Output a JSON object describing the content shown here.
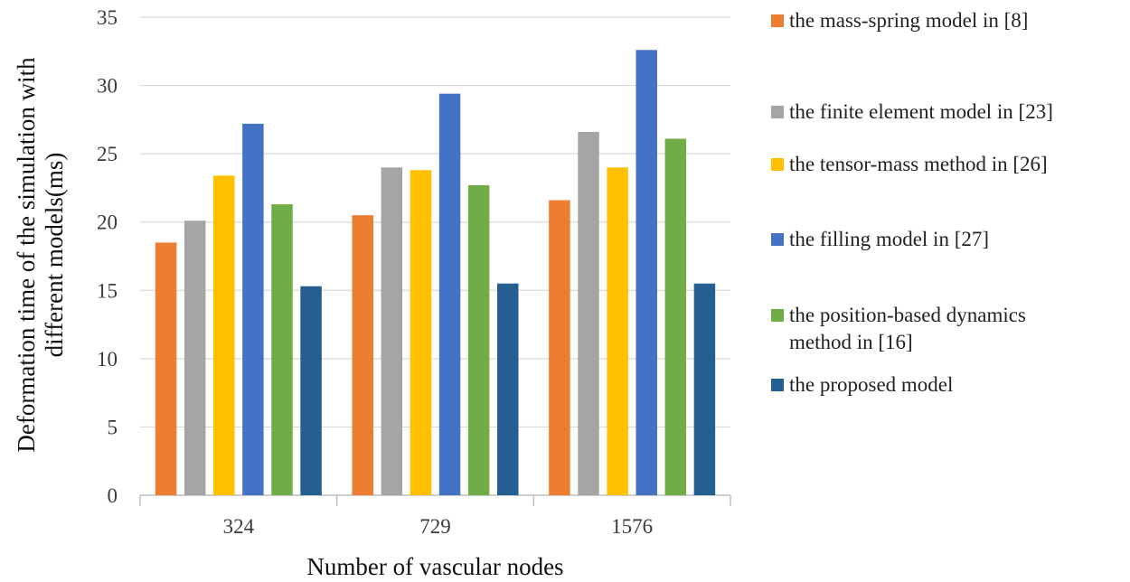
{
  "chart_data": {
    "type": "bar",
    "categories": [
      "324",
      "729",
      "1576"
    ],
    "xlabel": "Number of vascular nodes",
    "ylabel_lines": [
      "Deformation time of the simulation with",
      "different models(ms)"
    ],
    "ylim": [
      0,
      35
    ],
    "yticks": [
      0,
      5,
      10,
      15,
      20,
      25,
      30,
      35
    ],
    "grid": true,
    "legend_position": "right",
    "series": [
      {
        "name_lines": [
          "the mass-spring model in [8]"
        ],
        "color": "#ED7D31",
        "values": [
          18.5,
          20.5,
          21.6
        ]
      },
      {
        "name_lines": [
          "the finite element model in [23]"
        ],
        "color": "#A5A5A5",
        "values": [
          20.1,
          24.0,
          26.6
        ]
      },
      {
        "name_lines": [
          "the tensor-mass method in [26]"
        ],
        "color": "#FFC000",
        "values": [
          23.4,
          23.8,
          24.0
        ]
      },
      {
        "name_lines": [
          "the filling model in [27]"
        ],
        "color": "#4472C4",
        "values": [
          27.2,
          29.4,
          32.6
        ]
      },
      {
        "name_lines": [
          "the position-based dynamics",
          "method in [16]"
        ],
        "color": "#70AD47",
        "values": [
          21.3,
          22.7,
          26.1
        ]
      },
      {
        "name_lines": [
          "the proposed model"
        ],
        "color": "#255E91",
        "values": [
          15.3,
          15.5,
          15.5
        ]
      }
    ]
  }
}
